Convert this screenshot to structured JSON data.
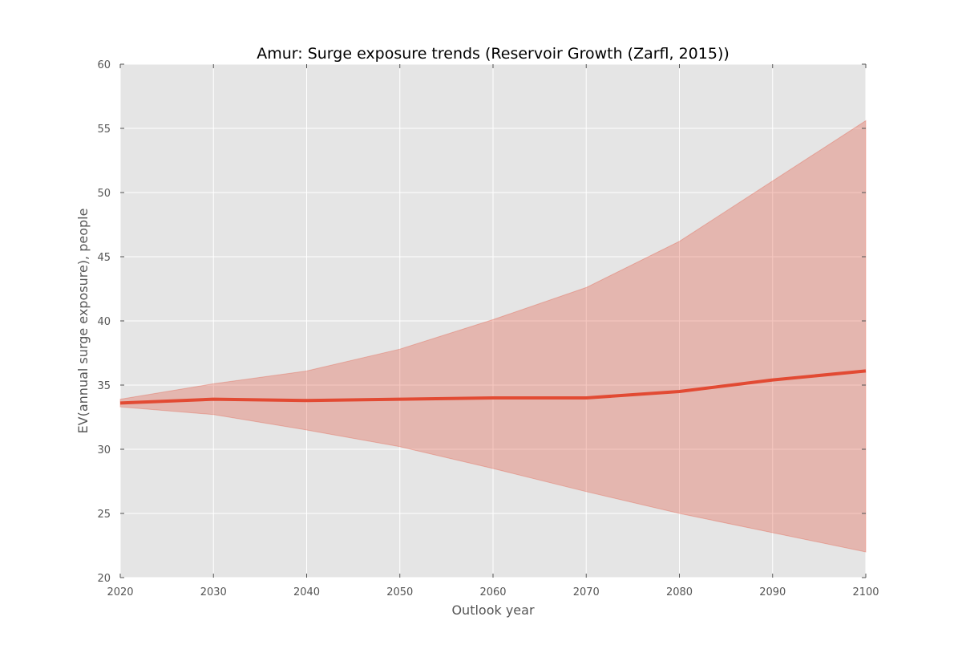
{
  "chart_data": {
    "type": "line",
    "title": "Amur: Surge exposure trends (Reservoir Growth (Zarfl, 2015))",
    "xlabel": "Outlook year",
    "ylabel": "EV(annual surge exposure), people",
    "xlim": [
      2020,
      2100
    ],
    "ylim": [
      20,
      60
    ],
    "xticks": [
      "2020",
      "2030",
      "2040",
      "2050",
      "2060",
      "2070",
      "2080",
      "2090",
      "2100"
    ],
    "yticks": [
      "20",
      "25",
      "30",
      "35",
      "40",
      "45",
      "50",
      "55",
      "60"
    ],
    "grid": true,
    "x": [
      2020,
      2030,
      2040,
      2050,
      2060,
      2070,
      2080,
      2090,
      2100
    ],
    "series": [
      {
        "values": [
          33.6,
          33.9,
          33.8,
          33.9,
          34.0,
          34.0,
          34.5,
          35.4,
          36.1
        ],
        "lower": [
          33.3,
          32.7,
          31.5,
          30.2,
          28.5,
          26.7,
          25.0,
          23.5,
          22.0
        ],
        "upper": [
          33.9,
          35.1,
          36.1,
          37.8,
          40.1,
          42.6,
          46.2,
          50.9,
          55.6
        ],
        "color": "#e24a33",
        "band_color": "#e24a33"
      }
    ]
  },
  "colors": {
    "plot_background": "#e5e5e5",
    "grid": "#ffffff",
    "line": "#e24a33",
    "band": "#e24a33"
  }
}
